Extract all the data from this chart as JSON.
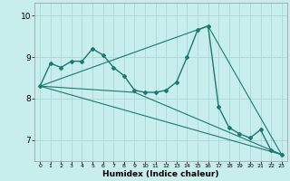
{
  "xlabel": "Humidex (Indice chaleur)",
  "background_color": "#c8eded",
  "grid_color": "#aad8d4",
  "line_color": "#1a7a6e",
  "xlim": [
    -0.5,
    23.5
  ],
  "ylim": [
    6.5,
    10.3
  ],
  "xticks": [
    0,
    1,
    2,
    3,
    4,
    5,
    6,
    7,
    8,
    9,
    10,
    11,
    12,
    13,
    14,
    15,
    16,
    17,
    18,
    19,
    20,
    21,
    22,
    23
  ],
  "yticks": [
    7,
    8,
    9,
    10
  ],
  "line1_x": [
    0,
    1,
    2,
    3,
    4,
    5,
    6,
    7,
    8,
    9,
    10,
    11,
    12,
    13,
    14,
    15,
    16,
    17,
    18,
    19,
    20,
    21,
    22,
    23
  ],
  "line1_y": [
    8.3,
    8.85,
    8.75,
    8.9,
    8.9,
    9.2,
    9.05,
    8.75,
    8.55,
    8.2,
    8.15,
    8.15,
    8.2,
    8.4,
    9.0,
    9.65,
    9.75,
    7.8,
    7.3,
    7.15,
    7.05,
    7.25,
    6.75,
    6.65
  ],
  "line2_x": [
    0,
    9,
    23
  ],
  "line2_y": [
    8.3,
    8.15,
    6.65
  ],
  "line3_x": [
    0,
    16,
    23
  ],
  "line3_y": [
    8.3,
    9.75,
    6.65
  ],
  "line4_x": [
    0,
    23
  ],
  "line4_y": [
    8.3,
    6.65
  ]
}
